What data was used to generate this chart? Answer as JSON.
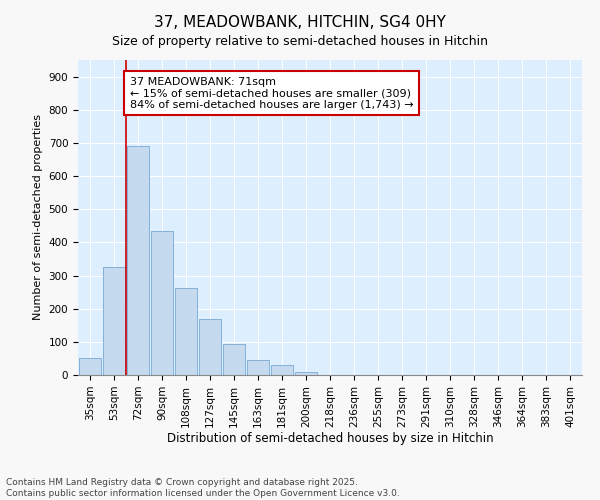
{
  "title": "37, MEADOWBANK, HITCHIN, SG4 0HY",
  "subtitle": "Size of property relative to semi-detached houses in Hitchin",
  "xlabel": "Distribution of semi-detached houses by size in Hitchin",
  "ylabel": "Number of semi-detached properties",
  "categories": [
    "35sqm",
    "53sqm",
    "72sqm",
    "90sqm",
    "108sqm",
    "127sqm",
    "145sqm",
    "163sqm",
    "181sqm",
    "200sqm",
    "218sqm",
    "236sqm",
    "255sqm",
    "273sqm",
    "291sqm",
    "310sqm",
    "328sqm",
    "346sqm",
    "364sqm",
    "383sqm",
    "401sqm"
  ],
  "bar_values": [
    50,
    325,
    690,
    435,
    262,
    168,
    92,
    46,
    30,
    10,
    0,
    0,
    0,
    0,
    0,
    0,
    0,
    0,
    0,
    0,
    0
  ],
  "bar_color": "#c5d9ef",
  "bar_edge_color": "#7aa8d2",
  "annotation_text": "37 MEADOWBANK: 71sqm\n← 15% of semi-detached houses are smaller (309)\n84% of semi-detached houses are larger (1,743) →",
  "annotation_box_facecolor": "#ffffff",
  "annotation_box_edgecolor": "#cc0000",
  "vline_color": "#cc0000",
  "vline_x": 2,
  "ylim": [
    0,
    950
  ],
  "yticks": [
    0,
    100,
    200,
    300,
    400,
    500,
    600,
    700,
    800,
    900
  ],
  "fig_facecolor": "#f8f8f8",
  "plot_facecolor": "#ddeeff",
  "grid_color": "#ffffff",
  "footer_text": "Contains HM Land Registry data © Crown copyright and database right 2025.\nContains public sector information licensed under the Open Government Licence v3.0.",
  "title_fontsize": 11,
  "subtitle_fontsize": 9,
  "xlabel_fontsize": 8.5,
  "ylabel_fontsize": 8,
  "tick_fontsize": 7.5,
  "annotation_fontsize": 8,
  "footer_fontsize": 6.5
}
